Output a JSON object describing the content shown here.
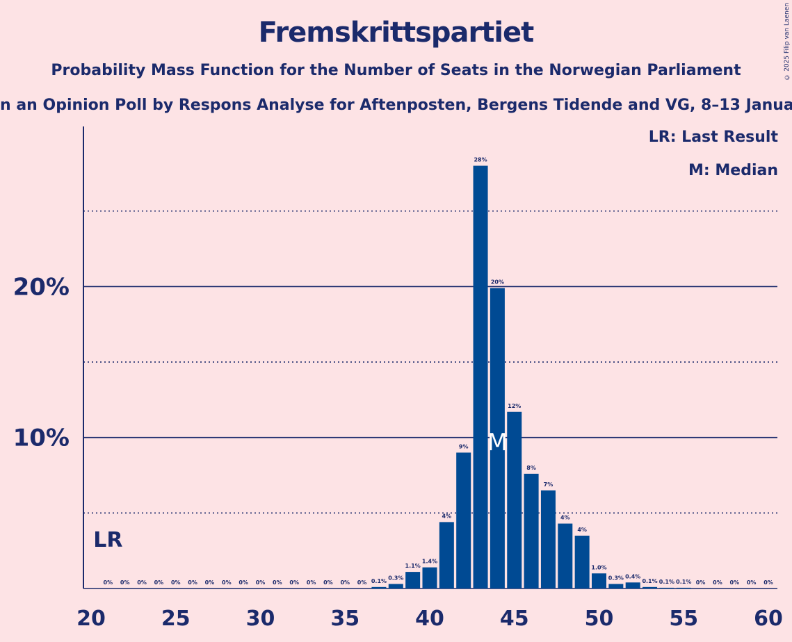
{
  "header": {
    "title": "Fremskrittspartiet",
    "subtitle": "Probability Mass Function for the Number of Seats in the Norwegian Parliament",
    "subtitle2": "n an Opinion Poll by Respons Analyse for Aftenposten, Bergens Tidende and VG, 8–13 Janua"
  },
  "copyright": "© 2025 Filip van Laenen",
  "legend": {
    "lr": "LR: Last Result",
    "m": "M: Median"
  },
  "colors": {
    "background": "#fde3e5",
    "bar": "#004a93",
    "text": "#1b2a6b"
  },
  "chart_data": {
    "type": "bar",
    "title": "Fremskrittspartiet",
    "xlabel": "",
    "ylabel": "",
    "xlim": [
      20,
      60
    ],
    "ylim": [
      0,
      30
    ],
    "x_ticks": [
      "20",
      "25",
      "30",
      "35",
      "40",
      "45",
      "50",
      "55",
      "60"
    ],
    "y_ticks": [
      "10%",
      "20%"
    ],
    "grid": "dotted lines at 5% intervals, solid lines at 10% and 20%",
    "last_result": {
      "seat": 21,
      "label": "LR"
    },
    "median": {
      "seat": 44,
      "label": "M"
    },
    "categories": [
      21,
      22,
      23,
      24,
      25,
      26,
      27,
      28,
      29,
      30,
      31,
      32,
      33,
      34,
      35,
      36,
      37,
      38,
      39,
      40,
      41,
      42,
      43,
      44,
      45,
      46,
      47,
      48,
      49,
      50,
      51,
      52,
      53,
      54,
      55,
      56,
      57,
      58,
      59,
      60
    ],
    "values": [
      0,
      0,
      0,
      0,
      0,
      0,
      0,
      0,
      0,
      0,
      0,
      0,
      0,
      0,
      0,
      0,
      0.1,
      0.3,
      1.1,
      1.4,
      4.4,
      9.0,
      28.0,
      19.9,
      11.7,
      7.6,
      6.5,
      4.3,
      3.5,
      1.0,
      0.3,
      0.4,
      0.1,
      0.05,
      0.05,
      0,
      0,
      0,
      0,
      0
    ],
    "labels": [
      "0%",
      "0%",
      "0%",
      "0%",
      "0%",
      "0%",
      "0%",
      "0%",
      "0%",
      "0%",
      "0%",
      "0%",
      "0%",
      "0%",
      "0%",
      "0%",
      "0.1%",
      "0.3%",
      "1.1%",
      "1.4%",
      "4%",
      "9%",
      "28%",
      "20%",
      "12%",
      "8%",
      "7%",
      "4%",
      "4%",
      "1.0%",
      "0.3%",
      "0.4%",
      "0.1%",
      "0.1%",
      "0.1%",
      "0%",
      "0%",
      "0%",
      "0%",
      "0%"
    ]
  }
}
